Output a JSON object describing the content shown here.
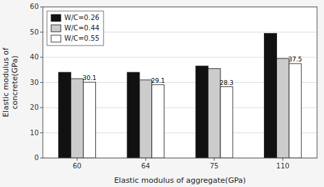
{
  "chart_data": {
    "type": "bar",
    "categories": [
      "60",
      "64",
      "75",
      "110"
    ],
    "series": [
      {
        "name": "W/C=0.26",
        "color": "#111111",
        "values": [
          34.0,
          34.0,
          36.5,
          49.5
        ]
      },
      {
        "name": "W/C=0.44",
        "color": "#cccccc",
        "values": [
          31.5,
          31.0,
          35.5,
          39.5
        ]
      },
      {
        "name": "W/C=0.55",
        "color": "#ffffff",
        "values": [
          30.1,
          29.1,
          28.3,
          37.5
        ],
        "data_labels": true
      }
    ],
    "xlabel": "Elastic modulus of aggregate(GPa)",
    "ylabel": "Elastic modulus of\nconcrete(GPa)",
    "ylim": [
      0,
      60
    ],
    "yticks": [
      0,
      10,
      20,
      30,
      40,
      50,
      60
    ],
    "grid": true,
    "legend": "upper left"
  }
}
